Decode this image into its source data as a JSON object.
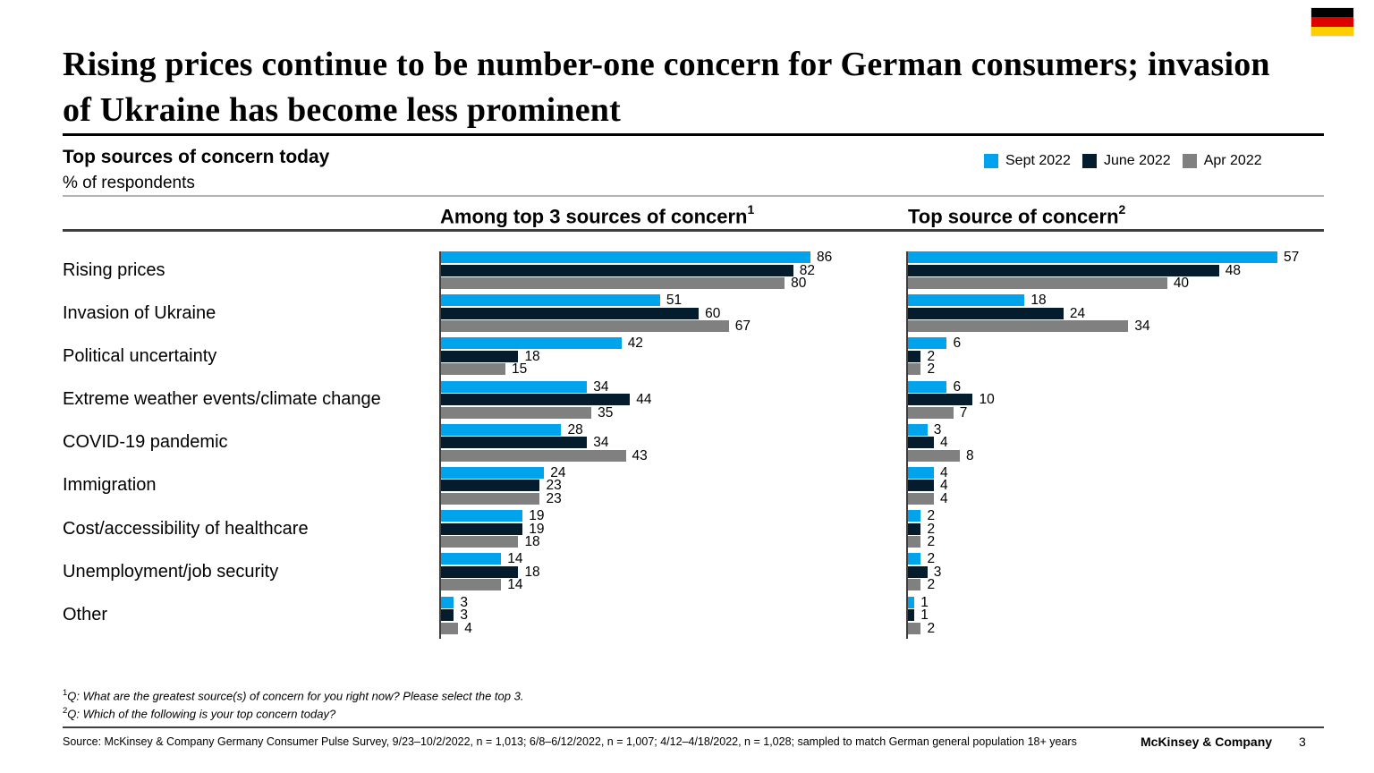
{
  "title": "Rising prices continue to be number-one concern for German consumers; invasion of Ukraine has become less prominent",
  "subtitle": {
    "heading": "Top sources of concern today",
    "unit": "% of respondents"
  },
  "flag": {
    "name": "germany-flag",
    "stripes": [
      "#000000",
      "#DD0000",
      "#FFCE00"
    ]
  },
  "legend": [
    {
      "label": "Sept 2022",
      "color": "#00A3EC"
    },
    {
      "label": "June 2022",
      "color": "#051C2C"
    },
    {
      "label": "Apr 2022",
      "color": "#808080"
    }
  ],
  "chart_data": {
    "type": "bar",
    "orientation": "horizontal",
    "legend_position": "top-right",
    "categories": [
      "Rising prices",
      "Invasion of Ukraine",
      "Political uncertainty",
      "Extreme weather events/climate change",
      "COVID-19 pandemic",
      "Immigration",
      "Cost/accessibility of healthcare",
      "Unemployment/job security",
      "Other"
    ],
    "panels": [
      {
        "title": "Among top 3 sources of concern",
        "superscript": "1",
        "axis_max": 86,
        "series": [
          {
            "name": "Sept 2022",
            "values": [
              86,
              51,
              42,
              34,
              28,
              24,
              19,
              14,
              3
            ]
          },
          {
            "name": "June 2022",
            "values": [
              82,
              60,
              18,
              44,
              34,
              23,
              19,
              18,
              3
            ]
          },
          {
            "name": "Apr 2022",
            "values": [
              80,
              67,
              15,
              35,
              43,
              23,
              18,
              14,
              4
            ]
          }
        ]
      },
      {
        "title": "Top source of concern",
        "superscript": "2",
        "axis_max": 57,
        "series": [
          {
            "name": "Sept 2022",
            "values": [
              57,
              18,
              6,
              6,
              3,
              4,
              2,
              2,
              1
            ]
          },
          {
            "name": "June 2022",
            "values": [
              48,
              24,
              2,
              10,
              4,
              4,
              2,
              3,
              1
            ]
          },
          {
            "name": "Apr 2022",
            "values": [
              40,
              34,
              2,
              7,
              8,
              4,
              2,
              2,
              2
            ]
          }
        ]
      }
    ]
  },
  "footnotes": [
    {
      "sup": "1",
      "text": "Q: What are the greatest source(s) of concern for you right now? Please select the top 3."
    },
    {
      "sup": "2",
      "text": "Q: Which of the following is your top concern today?"
    }
  ],
  "source": "Source: McKinsey & Company Germany Consumer Pulse Survey, 9/23–10/2/2022, n = 1,013; 6/8–6/12/2022, n = 1,007; 4/12–4/18/2022, n = 1,028; sampled to match German general population 18+ years",
  "footer": {
    "brand": "McKinsey & Company",
    "page": "3"
  }
}
